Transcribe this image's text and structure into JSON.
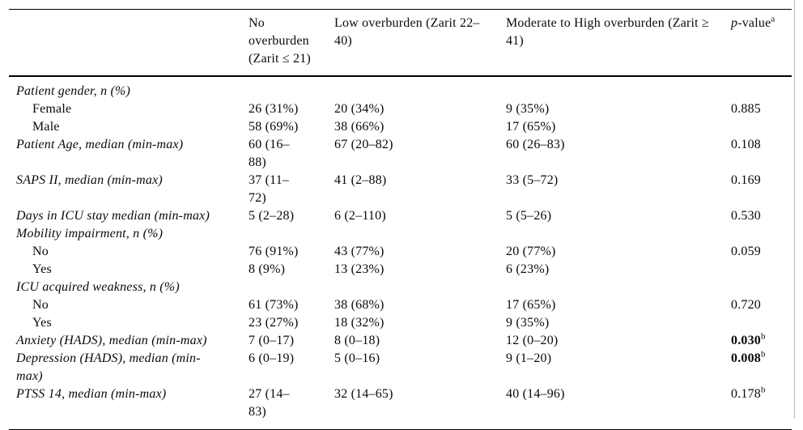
{
  "table": {
    "header": {
      "empty": "",
      "no_overburden": "No\noverburden\n(Zarit ≤ 21)",
      "low_overburden": "Low overburden (Zarit 22–\n40)",
      "moderate_high_overburden": "Moderate to High overburden (Zarit ≥\n41)",
      "p_value": {
        "p": "p",
        "rest": "-value",
        "sup": "a"
      }
    },
    "rows": [
      {
        "label": "Patient gender, n (%)",
        "style": "category",
        "c2": "",
        "c3": "",
        "c4": "",
        "p": "",
        "p_sup": "",
        "p_bold": false
      },
      {
        "label": "Female",
        "style": "sub",
        "c2": "26 (31%)",
        "c3": "20 (34%)",
        "c4": "9 (35%)",
        "p": "0.885",
        "p_sup": "",
        "p_bold": false
      },
      {
        "label": "Male",
        "style": "sub",
        "c2": "58 (69%)",
        "c3": "38 (66%)",
        "c4": "17 (65%)",
        "p": "",
        "p_sup": "",
        "p_bold": false
      },
      {
        "label": "Patient Age, median (min-max)",
        "style": "category",
        "c2": "60 (16–\n88)",
        "c3": "67 (20–82)",
        "c4": "60 (26–83)",
        "p": "0.108",
        "p_sup": "",
        "p_bold": false
      },
      {
        "label": "SAPS II, median (min-max)",
        "style": "category",
        "c2": "37 (11–\n72)",
        "c3": "41 (2–88)",
        "c4": "33 (5–72)",
        "p": "0.169",
        "p_sup": "",
        "p_bold": false
      },
      {
        "label": "Days in ICU stay median (min-max)",
        "style": "category",
        "c2": "5 (2–28)",
        "c3": "6 (2–110)",
        "c4": "5 (5–26)",
        "p": "0.530",
        "p_sup": "",
        "p_bold": false
      },
      {
        "label": "Mobility impairment, n (%)",
        "style": "category",
        "c2": "",
        "c3": "",
        "c4": "",
        "p": "",
        "p_sup": "",
        "p_bold": false
      },
      {
        "label": "No",
        "style": "sub",
        "c2": "76 (91%)",
        "c3": "43 (77%)",
        "c4": "20 (77%)",
        "p": "0.059",
        "p_sup": "",
        "p_bold": false
      },
      {
        "label": "Yes",
        "style": "sub",
        "c2": "8 (9%)",
        "c3": "13 (23%)",
        "c4": "6 (23%)",
        "p": "",
        "p_sup": "",
        "p_bold": false
      },
      {
        "label": "ICU acquired weakness, n (%)",
        "style": "category",
        "c2": "",
        "c3": "",
        "c4": "",
        "p": "",
        "p_sup": "",
        "p_bold": false
      },
      {
        "label": "No",
        "style": "sub",
        "c2": "61 (73%)",
        "c3": "38 (68%)",
        "c4": "17 (65%)",
        "p": "0.720",
        "p_sup": "",
        "p_bold": false
      },
      {
        "label": "Yes",
        "style": "sub",
        "c2": "23 (27%)",
        "c3": "18 (32%)",
        "c4": "9 (35%)",
        "p": "",
        "p_sup": "",
        "p_bold": false
      },
      {
        "label": "Anxiety (HADS), median (min-max)",
        "style": "category",
        "c2": "7 (0–17)",
        "c3": "8 (0–18)",
        "c4": "12 (0–20)",
        "p": "0.030",
        "p_sup": "b",
        "p_bold": true
      },
      {
        "label": "Depression (HADS), median (min-\nmax)",
        "style": "category",
        "c2": "6 (0–19)",
        "c3": "5 (0–16)",
        "c4": "9 (1–20)",
        "p": "0.008",
        "p_sup": "b",
        "p_bold": true
      },
      {
        "label": "PTSS 14, median (min-max)",
        "style": "category",
        "c2": "27 (14–\n83)",
        "c3": "32 (14–65)",
        "c4": "40 (14–96)",
        "p": "0.178",
        "p_sup": "b",
        "p_bold": false
      }
    ]
  },
  "colors": {
    "text": "#0a0a0a",
    "rule": "#000000",
    "page_edge": "#b8b8b8",
    "background": "#ffffff"
  }
}
